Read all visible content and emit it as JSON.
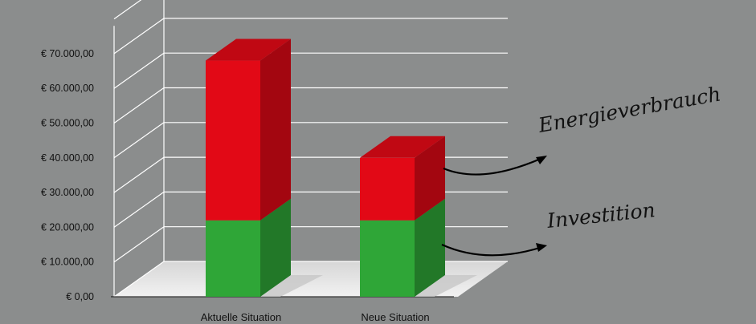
{
  "chart_data": {
    "type": "bar",
    "stacked": true,
    "three_d": true,
    "categories": [
      "Aktuelle Situation",
      "Neue Situation"
    ],
    "series": [
      {
        "name": "Investition",
        "values": [
          22000,
          22000
        ],
        "color": "#2fa637"
      },
      {
        "name": "Energieverbrauch",
        "values": [
          46000,
          18000
        ],
        "color": "#e20916"
      }
    ],
    "y_ticks": [
      "€ 0,00",
      "€ 10.000,00",
      "€ 20.000,00",
      "€ 30.000,00",
      "€ 40.000,00",
      "€ 50.000,00",
      "€ 60.000,00",
      "€ 70.000,00"
    ],
    "ylim": [
      0,
      70000
    ],
    "grid": true,
    "legend_style": "handwritten annotations with arrows on the right",
    "colors": {
      "background": "#8b8d8d",
      "floor": "#e8e8e8",
      "gridline": "#ffffff"
    }
  }
}
